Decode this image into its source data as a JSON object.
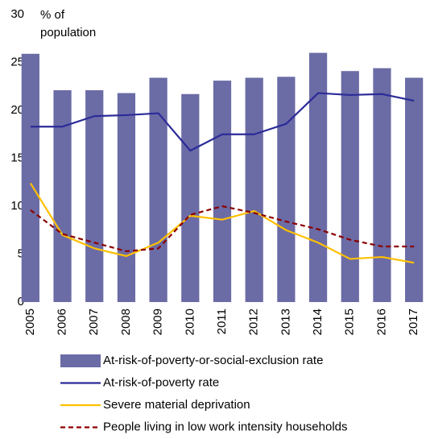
{
  "chart_data": {
    "type": "combo",
    "y_label": "% of population",
    "categories": [
      "2005",
      "2006",
      "2007",
      "2008",
      "2009",
      "2010",
      "2011",
      "2012",
      "2013",
      "2014",
      "2015",
      "2016",
      "2017"
    ],
    "ylim": [
      0,
      30
    ],
    "yticks": [
      0,
      5,
      10,
      15,
      20,
      25,
      30
    ],
    "grid": false,
    "series": [
      {
        "name": "At-risk-of-poverty-or-social-exclusion rate",
        "type": "bar",
        "color": "#6b6ba6",
        "values": [
          25.9,
          22.1,
          22.1,
          21.8,
          23.4,
          21.7,
          23.1,
          23.4,
          23.5,
          26.0,
          24.1,
          24.4,
          23.4
        ]
      },
      {
        "name": "At-risk-of-poverty rate",
        "type": "line",
        "color": "#2b2b99",
        "style": "solid",
        "values": [
          18.3,
          18.3,
          19.4,
          19.5,
          19.7,
          15.8,
          17.5,
          17.5,
          18.6,
          21.8,
          21.6,
          21.7,
          21.0
        ]
      },
      {
        "name": "Severe material deprivation",
        "type": "line",
        "color": "#ffc000",
        "style": "solid",
        "values": [
          12.4,
          7.0,
          5.6,
          4.8,
          6.2,
          9.0,
          8.6,
          9.5,
          7.5,
          6.2,
          4.5,
          4.7,
          4.1
        ]
      },
      {
        "name": "People living in low work intensity households",
        "type": "line",
        "color": "#8b0000",
        "style": "dashed",
        "values": [
          9.6,
          7.1,
          6.2,
          5.3,
          5.6,
          9.1,
          10.0,
          9.3,
          8.4,
          7.6,
          6.5,
          5.8,
          5.8
        ]
      }
    ]
  }
}
